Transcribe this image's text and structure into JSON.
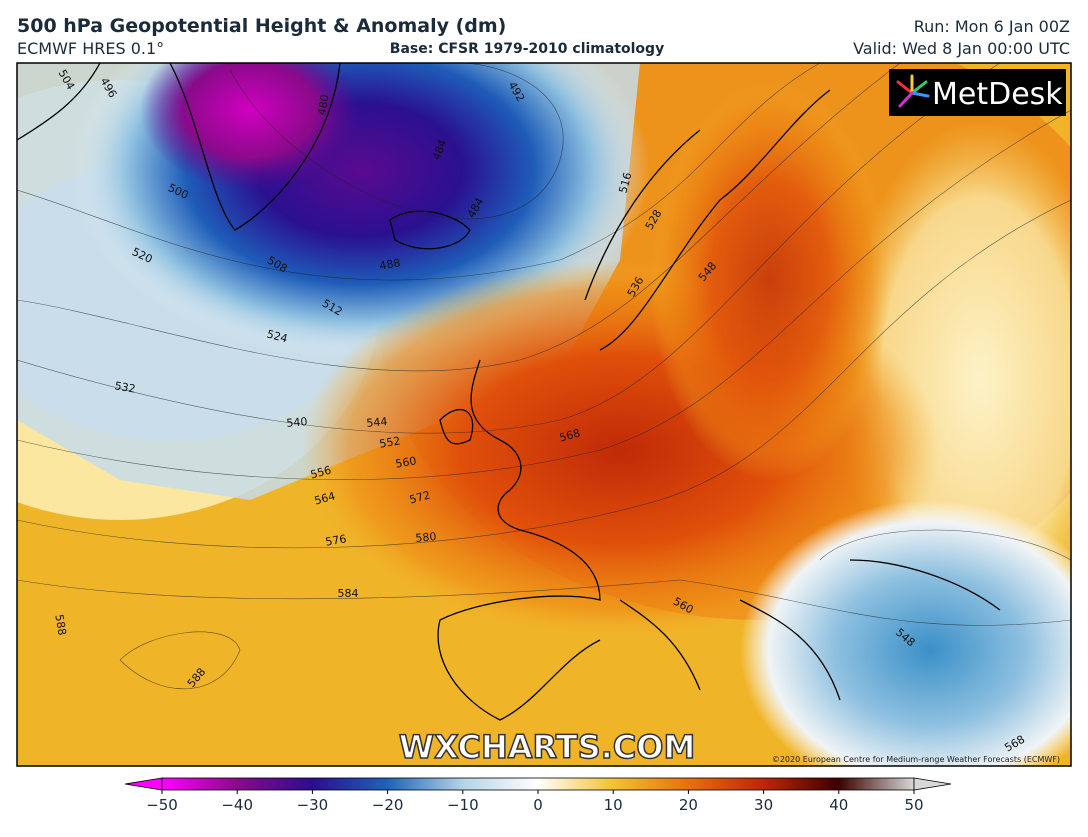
{
  "header": {
    "title": "500 hPa Geopotential Height & Anomaly (dm)",
    "model": "ECMWF HRES 0.1°",
    "base": "Base: CFSR 1979-2010 climatology",
    "run": "Run: Mon 6 Jan 00Z",
    "valid": "Valid: Wed 8 Jan 00:00 UTC"
  },
  "map": {
    "logo": "MetDesk",
    "watermark": "WXCHARTS.COM",
    "copyright": "©2020 European Centre for Medium-range Weather Forecasts (ECMWF)",
    "contour_labels": [
      504,
      496,
      500,
      520,
      508,
      512,
      524,
      532,
      540,
      544,
      552,
      556,
      560,
      564,
      572,
      576,
      580,
      584,
      588,
      588,
      568,
      560,
      548,
      568,
      480,
      492,
      484,
      488,
      484,
      516,
      528,
      536,
      548
    ]
  },
  "colorbar": {
    "ticks": [
      {
        "value": -50,
        "label": "−50"
      },
      {
        "value": -40,
        "label": "−40"
      },
      {
        "value": -30,
        "label": "−30"
      },
      {
        "value": -20,
        "label": "−20"
      },
      {
        "value": -10,
        "label": "−10"
      },
      0,
      10,
      20,
      30,
      40,
      50
    ],
    "colors": [
      "#ff00ff",
      "#8a0a8a",
      "#2b0d8f",
      "#1f63b8",
      "#b4d3e6",
      "#ffffff",
      "#f2c232",
      "#e8700c",
      "#bf2508",
      "#3d0000",
      "#d8d8d8"
    ]
  }
}
